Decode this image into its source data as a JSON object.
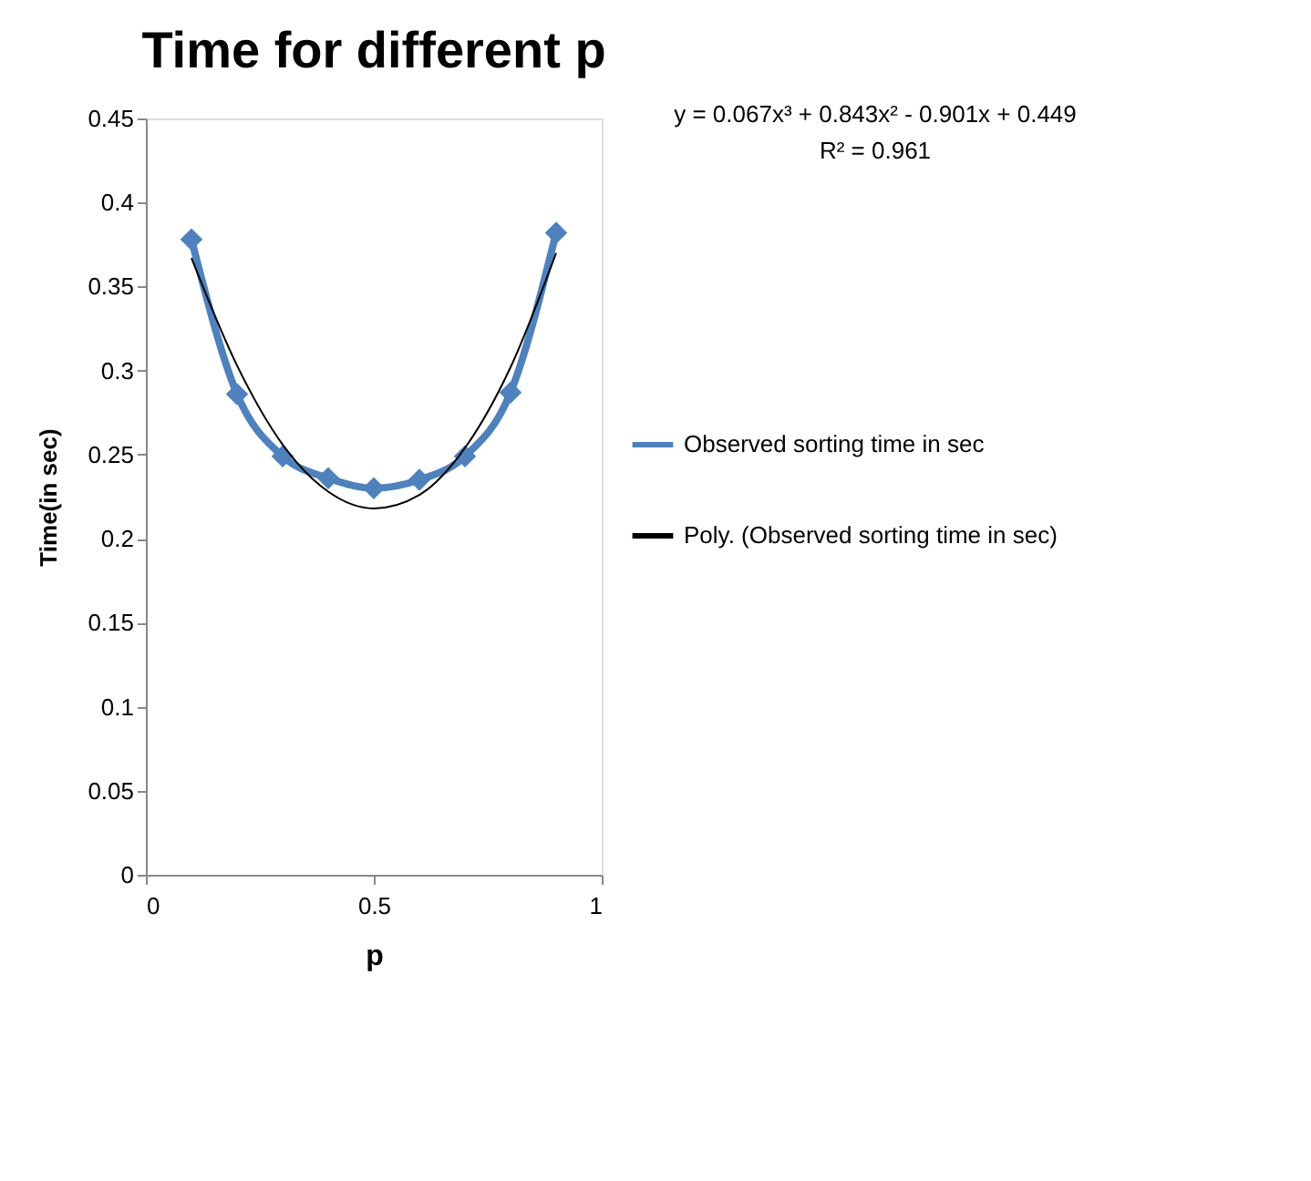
{
  "chart_data": {
    "type": "line",
    "title": "Time for different p",
    "xlabel": "p",
    "ylabel": "Time(in sec)",
    "xlim": [
      0,
      1
    ],
    "xticks": [
      0,
      0.5,
      1
    ],
    "ylim": [
      0,
      0.45
    ],
    "yticks": [
      0,
      0.05,
      0.1,
      0.15,
      0.2,
      0.25,
      0.3,
      0.35,
      0.4,
      0.45
    ],
    "grid": false,
    "legend": "right",
    "annotations": [
      "y = 0.067x³ + 0.843x² - 0.901x + 0.449",
      "R² = 0.961"
    ],
    "series": [
      {
        "name": "Observed sorting time in sec",
        "color": "#4f81bd",
        "marker": "diamond",
        "x": [
          0.1,
          0.2,
          0.3,
          0.4,
          0.5,
          0.6,
          0.7,
          0.8,
          0.9
        ],
        "values": [
          0.378,
          0.286,
          0.249,
          0.236,
          0.23,
          0.235,
          0.249,
          0.287,
          0.382
        ]
      },
      {
        "name": "Poly. (Observed sorting time in sec)",
        "color": "#000000",
        "marker": "none",
        "x": [
          0.1,
          0.2,
          0.3,
          0.4,
          0.5,
          0.6,
          0.7,
          0.8,
          0.9
        ],
        "values": [
          0.367,
          0.303,
          0.256,
          0.228,
          0.218,
          0.226,
          0.254,
          0.302,
          0.37
        ]
      }
    ]
  }
}
